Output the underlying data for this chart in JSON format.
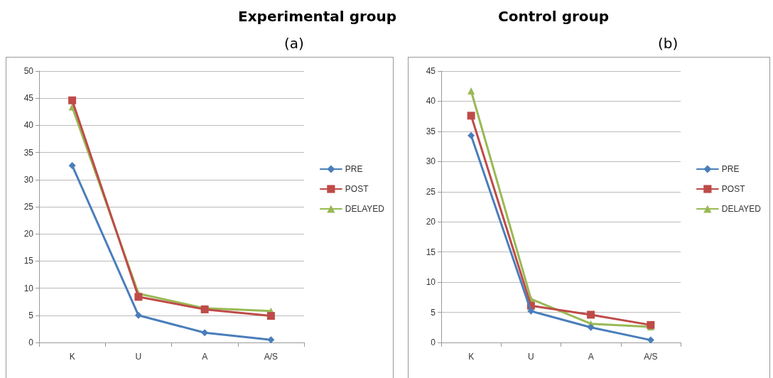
{
  "chart_data": [
    {
      "type": "line",
      "title": "Experimental group",
      "subtitle": "(a)",
      "categories": [
        "K",
        "U",
        "A",
        "A/S"
      ],
      "ylim": [
        0,
        50
      ],
      "yticks": [
        0,
        5,
        10,
        15,
        20,
        25,
        30,
        35,
        40,
        45,
        50
      ],
      "grid": "y",
      "legend": "right",
      "line_style": "solid",
      "series": [
        {
          "name": "PRE",
          "color": "#4a7ebb",
          "marker": "diamond",
          "values": [
            32.6,
            5,
            1.8,
            0.5
          ]
        },
        {
          "name": "POST",
          "color": "#be4b48",
          "marker": "square",
          "values": [
            44.6,
            8.4,
            6.1,
            4.9
          ]
        },
        {
          "name": "DELAYED",
          "color": "#98b954",
          "marker": "triangle",
          "values": [
            43.4,
            9,
            6.3,
            5.8
          ]
        }
      ]
    },
    {
      "type": "line",
      "title": "Control group",
      "subtitle": "(b)",
      "categories": [
        "K",
        "U",
        "A",
        "A/S"
      ],
      "ylim": [
        0,
        45
      ],
      "yticks": [
        0,
        5,
        10,
        15,
        20,
        25,
        30,
        35,
        40,
        45
      ],
      "grid": "y",
      "legend": "right",
      "line_style": "solid",
      "series": [
        {
          "name": "PRE",
          "color": "#4a7ebb",
          "marker": "diamond",
          "values": [
            34.3,
            5.2,
            2.5,
            0.4
          ]
        },
        {
          "name": "POST",
          "color": "#be4b48",
          "marker": "square",
          "values": [
            37.6,
            6.1,
            4.6,
            2.9
          ]
        },
        {
          "name": "DELAYED",
          "color": "#98b954",
          "marker": "triangle",
          "values": [
            41.7,
            7.2,
            3.1,
            2.6
          ]
        }
      ]
    }
  ]
}
